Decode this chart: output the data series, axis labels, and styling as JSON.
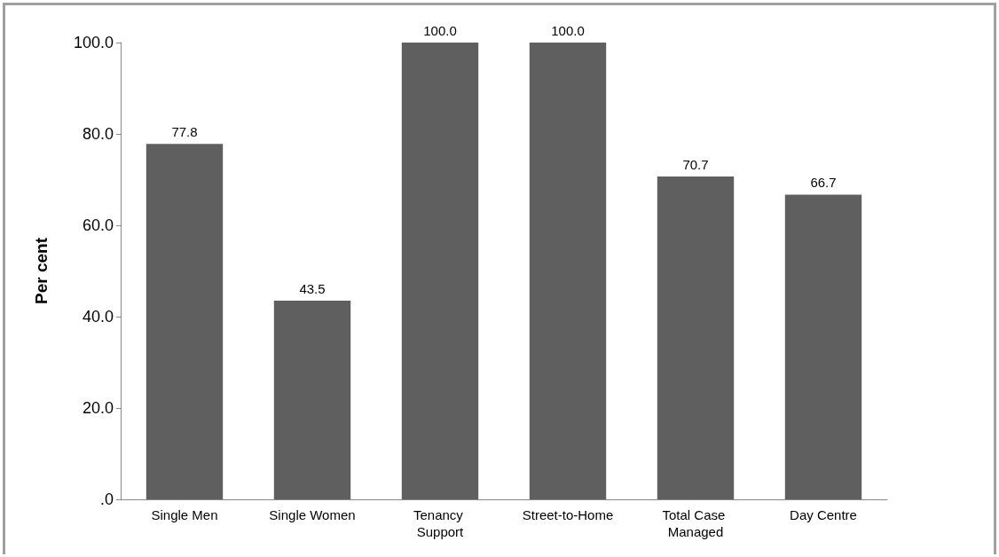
{
  "chart_data": {
    "type": "bar",
    "ylabel": "Per cent",
    "categories": [
      "Single Men",
      "Single Women",
      "Tenancy Support",
      "Street-to-Home",
      "Total Case Managed",
      "Day Centre"
    ],
    "values": [
      77.8,
      43.5,
      100,
      100,
      70.7,
      66.7
    ],
    "value_labels": [
      "77.8",
      "43.5",
      "100.0",
      "100.0",
      "70.7",
      "66.7"
    ],
    "color": "#5f5f5f",
    "ylim": [
      0,
      100
    ],
    "yticks": [
      {
        "value": 0,
        "label": ".0"
      },
      {
        "value": 20,
        "label": "20.0"
      },
      {
        "value": 40,
        "label": "40.0"
      },
      {
        "value": 60,
        "label": "60.0"
      },
      {
        "value": 80,
        "label": "80.0"
      },
      {
        "value": 100,
        "label": "100.0"
      }
    ],
    "grid": false
  }
}
